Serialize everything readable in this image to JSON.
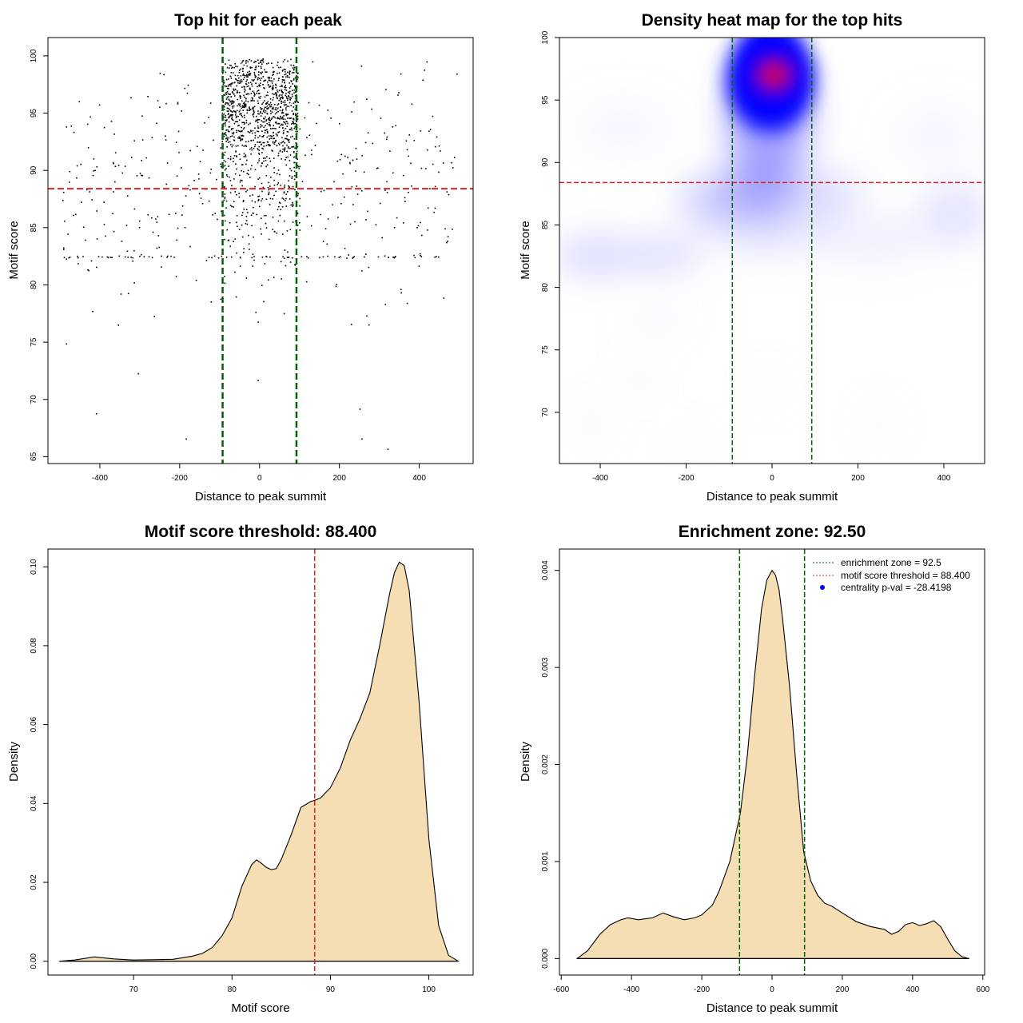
{
  "colors": {
    "frame": "#000000",
    "density_fill": "#f5deb3",
    "threshold_line": "#dd2222",
    "zone_line": "#006400",
    "heat_low": "#ffffff",
    "heat_mid": "#0000ff",
    "heat_high": "#ff0000",
    "pval_dot": "#0000ff"
  },
  "chart_data": [
    {
      "type": "scatter",
      "title": "Top hit for each peak",
      "xlabel": "Distance to peak summit",
      "ylabel": "Motif score",
      "xlim": [
        -530,
        535
      ],
      "ylim": [
        64.4,
        101.6
      ],
      "xticks": [
        -400,
        -200,
        0,
        200,
        400
      ],
      "yticks": [
        65,
        70,
        75,
        80,
        85,
        90,
        95,
        100
      ],
      "hline": 88.4,
      "vlines": [
        -92.5,
        92.5
      ],
      "clusters": [
        {
          "note": "dense central core",
          "n": 950,
          "x_range": [
            -95,
            95
          ],
          "y_mean": 95.5,
          "y_sd": 2.4
        },
        {
          "note": "central low tail",
          "n": 260,
          "x_range": [
            -100,
            100
          ],
          "y_mean": 88.5,
          "y_sd": 3.5
        },
        {
          "note": "flanks",
          "n": 380,
          "x_range": [
            -495,
            495
          ],
          "y_mean": 88.5,
          "y_sd": 5.0
        },
        {
          "note": "score 82.5 band",
          "n": 70,
          "x_range": [
            -495,
            495
          ],
          "y_mean": 82.5,
          "y_sd": 0.05
        }
      ],
      "outliers": [
        {
          "x": -485,
          "y": 74.9
        },
        {
          "x": -410,
          "y": 68.8
        },
        {
          "x": -305,
          "y": 72.3
        },
        {
          "x": -185,
          "y": 66.6
        },
        {
          "x": -265,
          "y": 77.3
        },
        {
          "x": -5,
          "y": 76.8
        },
        {
          "x": -5,
          "y": 71.7
        },
        {
          "x": 250,
          "y": 69.2
        },
        {
          "x": 255,
          "y": 66.6
        },
        {
          "x": 320,
          "y": 65.7
        },
        {
          "x": -330,
          "y": 79.3
        },
        {
          "x": 460,
          "y": 78.9
        },
        {
          "x": -60,
          "y": 79.0
        }
      ]
    },
    {
      "type": "heatmap",
      "title": "Density heat map for the top hits",
      "xlabel": "Distance to peak summit",
      "ylabel": "Motif score",
      "xlim": [
        -495,
        495
      ],
      "ylim": [
        65.9,
        100.0
      ],
      "xticks": [
        -400,
        -200,
        0,
        200,
        400
      ],
      "yticks": [
        70,
        75,
        80,
        85,
        90,
        95,
        100
      ],
      "hline": 88.4,
      "vlines": [
        -92.5,
        92.5
      ],
      "density_peak": {
        "x": 5,
        "y": 97.0
      }
    },
    {
      "type": "area",
      "title": "Motif score threshold: 88.400",
      "xlabel": "Motif score",
      "ylabel": "Density",
      "xlim": [
        61.3,
        104.5
      ],
      "ylim": [
        -0.0035,
        0.1045
      ],
      "xticks": [
        70,
        80,
        90,
        100
      ],
      "yticks": [
        0.0,
        0.02,
        0.04,
        0.06,
        0.08,
        0.1
      ],
      "ytick_labels": [
        "0.00",
        "0.02",
        "0.04",
        "0.06",
        "0.08",
        "0.10"
      ],
      "vline": 88.4,
      "x": [
        62.5,
        64,
        66,
        68,
        70,
        72,
        74,
        76,
        77,
        78,
        79,
        80,
        81,
        82,
        82.5,
        83,
        83.5,
        84,
        84.5,
        85,
        86,
        87,
        88,
        88.4,
        89,
        90,
        91,
        92,
        93,
        94,
        95,
        96,
        96.5,
        97,
        97.5,
        98,
        99,
        100,
        101,
        102,
        103
      ],
      "y": [
        0.0,
        0.0003,
        0.0011,
        0.0006,
        0.0003,
        0.0004,
        0.0005,
        0.0013,
        0.002,
        0.0035,
        0.0065,
        0.011,
        0.019,
        0.0245,
        0.0257,
        0.0248,
        0.0238,
        0.0232,
        0.0235,
        0.0258,
        0.032,
        0.039,
        0.0405,
        0.0408,
        0.0414,
        0.044,
        0.049,
        0.056,
        0.0615,
        0.068,
        0.08,
        0.093,
        0.0985,
        0.1012,
        0.1003,
        0.094,
        0.066,
        0.031,
        0.009,
        0.0015,
        0.0
      ]
    },
    {
      "type": "area",
      "title": "Enrichment zone: 92.50",
      "xlabel": "Distance to peak summit",
      "ylabel": "Density",
      "xlim": [
        -605,
        605
      ],
      "ylim": [
        -0.00017,
        0.00422
      ],
      "xticks": [
        -600,
        -400,
        -200,
        0,
        200,
        400,
        600
      ],
      "yticks": [
        0.0,
        0.001,
        0.002,
        0.003,
        0.004
      ],
      "ytick_labels": [
        "0.000",
        "0.001",
        "0.002",
        "0.003",
        "0.004"
      ],
      "vlines": [
        -92.5,
        92.5
      ],
      "x": [
        -555,
        -525,
        -490,
        -460,
        -430,
        -410,
        -380,
        -340,
        -310,
        -280,
        -250,
        -220,
        -200,
        -170,
        -150,
        -120,
        -90,
        -70,
        -50,
        -30,
        -15,
        0,
        10,
        20,
        30,
        50,
        70,
        90,
        110,
        130,
        150,
        170,
        200,
        240,
        280,
        320,
        340,
        360,
        380,
        400,
        420,
        440,
        460,
        480,
        500,
        520,
        540,
        560
      ],
      "y": [
        0.0,
        8e-05,
        0.00025,
        0.00035,
        0.0004,
        0.00042,
        0.0004,
        0.00042,
        0.00047,
        0.00043,
        0.0004,
        0.00042,
        0.00045,
        0.00055,
        0.0007,
        0.001,
        0.0015,
        0.0021,
        0.0029,
        0.0036,
        0.0039,
        0.004,
        0.00395,
        0.0038,
        0.0035,
        0.0028,
        0.0019,
        0.0011,
        0.0008,
        0.00065,
        0.00057,
        0.00054,
        0.00047,
        0.00038,
        0.00033,
        0.0003,
        0.00025,
        0.00028,
        0.00035,
        0.00037,
        0.00034,
        0.00036,
        0.00039,
        0.00033,
        0.0002,
        8e-05,
        2e-05,
        0.0
      ],
      "legend": {
        "position": "top-right",
        "items": [
          {
            "label": "enrichment zone = 92.5",
            "color": "#006400",
            "symbol": "dotted-line"
          },
          {
            "label": "motif score threshold = 88.400",
            "color": "#dd2222",
            "symbol": "dotted-line"
          },
          {
            "label": "centrality p-val = -28.4198",
            "color": "#0000ff",
            "symbol": "dot"
          }
        ]
      }
    }
  ]
}
